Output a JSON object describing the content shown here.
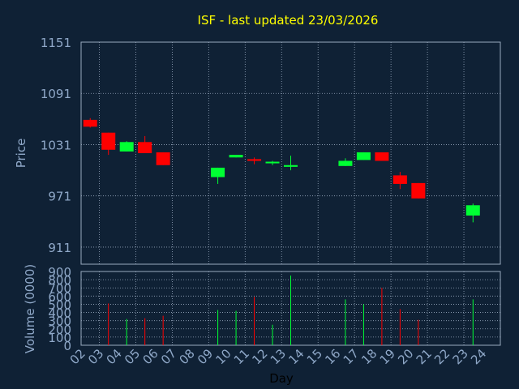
{
  "title": "ISF - last updated 23/03/2026",
  "colors": {
    "background": "#0f2135",
    "title": "#ffff00",
    "text": "#8fa8c8",
    "grid": "#9aaac0",
    "up": "#00ff33",
    "down": "#ff0000"
  },
  "chart_data": [
    {
      "type": "candlestick",
      "ylabel": "Price",
      "ylim": [
        891,
        1151
      ],
      "yticks": [
        "1151",
        "1091",
        "1031",
        "971",
        "911"
      ],
      "grid": true,
      "days": [
        {
          "label": "02",
          "open": 1060,
          "high": 1062,
          "low": 1051,
          "close": 1052
        },
        {
          "label": "03",
          "open": 1045,
          "high": 1045,
          "low": 1019,
          "close": 1025
        },
        {
          "label": "04",
          "open": 1023,
          "high": 1035,
          "low": 1023,
          "close": 1034
        },
        {
          "label": "05",
          "open": 1034,
          "high": 1041,
          "low": 1021,
          "close": 1021
        },
        {
          "label": "06",
          "open": 1022,
          "high": 1022,
          "low": 1007,
          "close": 1007
        },
        {
          "label": "07",
          "open": null,
          "high": null,
          "low": null,
          "close": null
        },
        {
          "label": "08",
          "open": null,
          "high": null,
          "low": null,
          "close": null
        },
        {
          "label": "09",
          "open": 993,
          "high": 1004,
          "low": 985,
          "close": 1004
        },
        {
          "label": "10",
          "open": 1016,
          "high": 1019,
          "low": 1016,
          "close": 1019
        },
        {
          "label": "11",
          "open": 1014,
          "high": 1016,
          "low": 1008,
          "close": 1012
        },
        {
          "label": "12",
          "open": 1010,
          "high": 1012,
          "low": 1007,
          "close": 1011
        },
        {
          "label": "13",
          "open": 1005,
          "high": 1018,
          "low": 1001,
          "close": 1007
        },
        {
          "label": "14",
          "open": null,
          "high": null,
          "low": null,
          "close": null
        },
        {
          "label": "15",
          "open": null,
          "high": null,
          "low": null,
          "close": null
        },
        {
          "label": "16",
          "open": 1006,
          "high": 1015,
          "low": 1006,
          "close": 1012
        },
        {
          "label": "17",
          "open": 1013,
          "high": 1022,
          "low": 1013,
          "close": 1022
        },
        {
          "label": "18",
          "open": 1022,
          "high": 1022,
          "low": 1012,
          "close": 1012
        },
        {
          "label": "19",
          "open": 995,
          "high": 999,
          "low": 979,
          "close": 985
        },
        {
          "label": "20",
          "open": 986,
          "high": 986,
          "low": 968,
          "close": 968
        },
        {
          "label": "21",
          "open": null,
          "high": null,
          "low": null,
          "close": null
        },
        {
          "label": "22",
          "open": null,
          "high": null,
          "low": null,
          "close": null
        },
        {
          "label": "23",
          "open": 948,
          "high": 962,
          "low": 940,
          "close": 960
        },
        {
          "label": "24",
          "open": null,
          "high": null,
          "low": null,
          "close": null
        }
      ]
    },
    {
      "type": "bar",
      "ylabel": "Volume (0000)",
      "xlabel": "Day",
      "ylim": [
        0,
        900
      ],
      "yticks": [
        "900",
        "800",
        "700",
        "600",
        "500",
        "400",
        "300",
        "200",
        "100",
        "0"
      ],
      "grid": true,
      "bars": [
        {
          "day": "03",
          "value": 510,
          "direction": "down"
        },
        {
          "day": "04",
          "value": 320,
          "direction": "up"
        },
        {
          "day": "05",
          "value": 330,
          "direction": "down"
        },
        {
          "day": "06",
          "value": 360,
          "direction": "down"
        },
        {
          "day": "09",
          "value": 430,
          "direction": "up"
        },
        {
          "day": "10",
          "value": 420,
          "direction": "up"
        },
        {
          "day": "11",
          "value": 590,
          "direction": "down"
        },
        {
          "day": "12",
          "value": 250,
          "direction": "up"
        },
        {
          "day": "13",
          "value": 850,
          "direction": "up"
        },
        {
          "day": "16",
          "value": 560,
          "direction": "up"
        },
        {
          "day": "17",
          "value": 500,
          "direction": "up"
        },
        {
          "day": "18",
          "value": 700,
          "direction": "down"
        },
        {
          "day": "19",
          "value": 440,
          "direction": "down"
        },
        {
          "day": "20",
          "value": 310,
          "direction": "down"
        },
        {
          "day": "23",
          "value": 560,
          "direction": "up"
        }
      ]
    }
  ]
}
